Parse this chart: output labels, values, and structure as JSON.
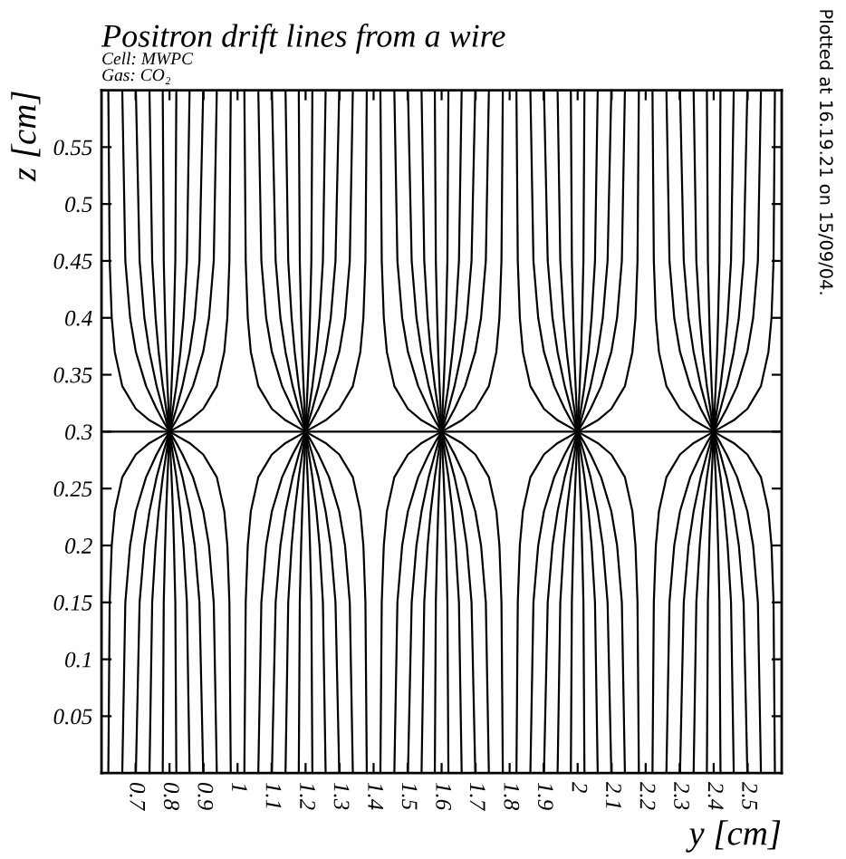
{
  "chart_data": {
    "type": "line",
    "title": "Positron drift lines from a wire",
    "xlabel": "y [cm]",
    "ylabel": "z [cm]",
    "annotations": [
      "Cell: MWPC",
      "Gas: CO₂",
      "Plotted at 16.19.21 on 15/09/04."
    ],
    "xlim": [
      0.6,
      2.6
    ],
    "ylim": [
      0,
      0.6
    ],
    "xticks": [
      0.7,
      0.8,
      0.9,
      1,
      1.1,
      1.2,
      1.3,
      1.4,
      1.5,
      1.6,
      1.7,
      1.8,
      1.9,
      2,
      2.1,
      2.2,
      2.3,
      2.4,
      2.5
    ],
    "yticks": [
      0.05,
      0.1,
      0.15,
      0.2,
      0.25,
      0.3,
      0.35,
      0.4,
      0.45,
      0.5,
      0.55
    ],
    "grid": false,
    "marker": "none",
    "line_style": "solid",
    "series": [
      {
        "color": "#000000",
        "x": [
          0.6,
          2.6
        ],
        "values": [
          0.3,
          0.3
        ]
      },
      {
        "color": "#000000",
        "x": [
          0.78,
          0.783,
          0.787,
          0.79,
          0.794,
          0.797,
          0.798,
          0.8,
          0.798,
          0.797,
          0.794,
          0.79,
          0.787,
          0.783,
          0.78
        ],
        "values": [
          0,
          0.15,
          0.2,
          0.23,
          0.26,
          0.28,
          0.29,
          0.3,
          0.31,
          0.32,
          0.34,
          0.37,
          0.4,
          0.45,
          0.6
        ]
      },
      {
        "color": "#000000",
        "x": [
          0.82,
          0.817,
          0.813,
          0.81,
          0.806,
          0.803,
          0.802,
          0.8,
          0.802,
          0.803,
          0.806,
          0.81,
          0.813,
          0.817,
          0.82
        ],
        "values": [
          0,
          0.15,
          0.2,
          0.23,
          0.26,
          0.28,
          0.29,
          0.3,
          0.31,
          0.32,
          0.34,
          0.37,
          0.4,
          0.45,
          0.6
        ]
      },
      {
        "color": "#000000",
        "x": [
          0.741,
          0.749,
          0.759,
          0.768,
          0.78,
          0.79,
          0.795,
          0.8,
          0.795,
          0.79,
          0.78,
          0.768,
          0.759,
          0.749,
          0.741
        ],
        "values": [
          0,
          0.15,
          0.2,
          0.23,
          0.26,
          0.28,
          0.29,
          0.3,
          0.31,
          0.32,
          0.34,
          0.37,
          0.4,
          0.45,
          0.6
        ]
      },
      {
        "color": "#000000",
        "x": [
          0.859,
          0.851,
          0.841,
          0.832,
          0.82,
          0.81,
          0.805,
          0.8,
          0.805,
          0.81,
          0.82,
          0.832,
          0.841,
          0.851,
          0.859
        ],
        "values": [
          0,
          0.15,
          0.2,
          0.23,
          0.26,
          0.28,
          0.29,
          0.3,
          0.31,
          0.32,
          0.34,
          0.37,
          0.4,
          0.45,
          0.6
        ]
      },
      {
        "color": "#000000",
        "x": [
          0.701,
          0.712,
          0.726,
          0.741,
          0.762,
          0.78,
          0.79,
          0.8,
          0.79,
          0.78,
          0.762,
          0.741,
          0.726,
          0.712,
          0.701
        ],
        "values": [
          0,
          0.15,
          0.2,
          0.23,
          0.26,
          0.28,
          0.29,
          0.3,
          0.31,
          0.32,
          0.34,
          0.37,
          0.4,
          0.45,
          0.6
        ]
      },
      {
        "color": "#000000",
        "x": [
          0.899,
          0.888,
          0.874,
          0.859,
          0.838,
          0.82,
          0.81,
          0.8,
          0.81,
          0.82,
          0.838,
          0.859,
          0.874,
          0.888,
          0.899
        ],
        "values": [
          0,
          0.15,
          0.2,
          0.23,
          0.26,
          0.28,
          0.29,
          0.3,
          0.31,
          0.32,
          0.34,
          0.37,
          0.4,
          0.45,
          0.6
        ]
      },
      {
        "color": "#000000",
        "x": [
          0.661,
          0.67,
          0.684,
          0.701,
          0.731,
          0.762,
          0.78,
          0.8,
          0.78,
          0.762,
          0.731,
          0.701,
          0.684,
          0.67,
          0.661
        ],
        "values": [
          0,
          0.15,
          0.2,
          0.23,
          0.26,
          0.28,
          0.29,
          0.3,
          0.31,
          0.32,
          0.34,
          0.37,
          0.4,
          0.45,
          0.6
        ]
      },
      {
        "color": "#000000",
        "x": [
          0.939,
          0.93,
          0.916,
          0.899,
          0.869,
          0.838,
          0.82,
          0.8,
          0.82,
          0.838,
          0.869,
          0.899,
          0.916,
          0.93,
          0.939
        ],
        "values": [
          0,
          0.15,
          0.2,
          0.23,
          0.26,
          0.28,
          0.29,
          0.3,
          0.31,
          0.32,
          0.34,
          0.37,
          0.4,
          0.45,
          0.6
        ]
      },
      {
        "color": "#000000",
        "x": [
          0.62,
          0.624,
          0.63,
          0.639,
          0.661,
          0.701,
          0.741,
          0.8,
          0.741,
          0.701,
          0.661,
          0.639,
          0.63,
          0.624,
          0.62
        ],
        "values": [
          0,
          0.15,
          0.2,
          0.23,
          0.26,
          0.28,
          0.29,
          0.3,
          0.31,
          0.32,
          0.34,
          0.37,
          0.4,
          0.45,
          0.6
        ]
      },
      {
        "color": "#000000",
        "x": [
          0.98,
          0.976,
          0.97,
          0.961,
          0.939,
          0.899,
          0.859,
          0.8,
          0.859,
          0.899,
          0.939,
          0.961,
          0.97,
          0.976,
          0.98
        ],
        "values": [
          0,
          0.15,
          0.2,
          0.23,
          0.26,
          0.28,
          0.29,
          0.3,
          0.31,
          0.32,
          0.34,
          0.37,
          0.4,
          0.45,
          0.6
        ]
      },
      {
        "color": "#000000",
        "x": [
          1.18,
          1.183,
          1.187,
          1.19,
          1.194,
          1.197,
          1.198,
          1.2,
          1.198,
          1.197,
          1.194,
          1.19,
          1.187,
          1.183,
          1.18
        ],
        "values": [
          0,
          0.15,
          0.2,
          0.23,
          0.26,
          0.28,
          0.29,
          0.3,
          0.31,
          0.32,
          0.34,
          0.37,
          0.4,
          0.45,
          0.6
        ]
      },
      {
        "color": "#000000",
        "x": [
          1.22,
          1.217,
          1.213,
          1.21,
          1.206,
          1.203,
          1.202,
          1.2,
          1.202,
          1.203,
          1.206,
          1.21,
          1.213,
          1.217,
          1.22
        ],
        "values": [
          0,
          0.15,
          0.2,
          0.23,
          0.26,
          0.28,
          0.29,
          0.3,
          0.31,
          0.32,
          0.34,
          0.37,
          0.4,
          0.45,
          0.6
        ]
      },
      {
        "color": "#000000",
        "x": [
          1.141,
          1.149,
          1.159,
          1.168,
          1.18,
          1.19,
          1.195,
          1.2,
          1.195,
          1.19,
          1.18,
          1.168,
          1.159,
          1.149,
          1.141
        ],
        "values": [
          0,
          0.15,
          0.2,
          0.23,
          0.26,
          0.28,
          0.29,
          0.3,
          0.31,
          0.32,
          0.34,
          0.37,
          0.4,
          0.45,
          0.6
        ]
      },
      {
        "color": "#000000",
        "x": [
          1.259,
          1.251,
          1.241,
          1.232,
          1.22,
          1.21,
          1.205,
          1.2,
          1.205,
          1.21,
          1.22,
          1.232,
          1.241,
          1.251,
          1.259
        ],
        "values": [
          0,
          0.15,
          0.2,
          0.23,
          0.26,
          0.28,
          0.29,
          0.3,
          0.31,
          0.32,
          0.34,
          0.37,
          0.4,
          0.45,
          0.6
        ]
      },
      {
        "color": "#000000",
        "x": [
          1.101,
          1.112,
          1.126,
          1.141,
          1.162,
          1.18,
          1.19,
          1.2,
          1.19,
          1.18,
          1.162,
          1.141,
          1.126,
          1.112,
          1.101
        ],
        "values": [
          0,
          0.15,
          0.2,
          0.23,
          0.26,
          0.28,
          0.29,
          0.3,
          0.31,
          0.32,
          0.34,
          0.37,
          0.4,
          0.45,
          0.6
        ]
      },
      {
        "color": "#000000",
        "x": [
          1.299,
          1.288,
          1.274,
          1.259,
          1.238,
          1.22,
          1.21,
          1.2,
          1.21,
          1.22,
          1.238,
          1.259,
          1.274,
          1.288,
          1.299
        ],
        "values": [
          0,
          0.15,
          0.2,
          0.23,
          0.26,
          0.28,
          0.29,
          0.3,
          0.31,
          0.32,
          0.34,
          0.37,
          0.4,
          0.45,
          0.6
        ]
      },
      {
        "color": "#000000",
        "x": [
          1.061,
          1.07,
          1.084,
          1.101,
          1.131,
          1.162,
          1.18,
          1.2,
          1.18,
          1.162,
          1.131,
          1.101,
          1.084,
          1.07,
          1.061
        ],
        "values": [
          0,
          0.15,
          0.2,
          0.23,
          0.26,
          0.28,
          0.29,
          0.3,
          0.31,
          0.32,
          0.34,
          0.37,
          0.4,
          0.45,
          0.6
        ]
      },
      {
        "color": "#000000",
        "x": [
          1.339,
          1.33,
          1.316,
          1.299,
          1.269,
          1.238,
          1.22,
          1.2,
          1.22,
          1.238,
          1.269,
          1.299,
          1.316,
          1.33,
          1.339
        ],
        "values": [
          0,
          0.15,
          0.2,
          0.23,
          0.26,
          0.28,
          0.29,
          0.3,
          0.31,
          0.32,
          0.34,
          0.37,
          0.4,
          0.45,
          0.6
        ]
      },
      {
        "color": "#000000",
        "x": [
          1.02,
          1.024,
          1.03,
          1.039,
          1.061,
          1.101,
          1.141,
          1.2,
          1.141,
          1.101,
          1.061,
          1.039,
          1.03,
          1.024,
          1.02
        ],
        "values": [
          0,
          0.15,
          0.2,
          0.23,
          0.26,
          0.28,
          0.29,
          0.3,
          0.31,
          0.32,
          0.34,
          0.37,
          0.4,
          0.45,
          0.6
        ]
      },
      {
        "color": "#000000",
        "x": [
          1.38,
          1.376,
          1.37,
          1.361,
          1.339,
          1.299,
          1.259,
          1.2,
          1.259,
          1.299,
          1.339,
          1.361,
          1.37,
          1.376,
          1.38
        ],
        "values": [
          0,
          0.15,
          0.2,
          0.23,
          0.26,
          0.28,
          0.29,
          0.3,
          0.31,
          0.32,
          0.34,
          0.37,
          0.4,
          0.45,
          0.6
        ]
      },
      {
        "color": "#000000",
        "x": [
          1.58,
          1.583,
          1.587,
          1.59,
          1.594,
          1.597,
          1.598,
          1.6,
          1.598,
          1.597,
          1.594,
          1.59,
          1.587,
          1.583,
          1.58
        ],
        "values": [
          0,
          0.15,
          0.2,
          0.23,
          0.26,
          0.28,
          0.29,
          0.3,
          0.31,
          0.32,
          0.34,
          0.37,
          0.4,
          0.45,
          0.6
        ]
      },
      {
        "color": "#000000",
        "x": [
          1.62,
          1.617,
          1.613,
          1.61,
          1.606,
          1.603,
          1.602,
          1.6,
          1.602,
          1.603,
          1.606,
          1.61,
          1.613,
          1.617,
          1.62
        ],
        "values": [
          0,
          0.15,
          0.2,
          0.23,
          0.26,
          0.28,
          0.29,
          0.3,
          0.31,
          0.32,
          0.34,
          0.37,
          0.4,
          0.45,
          0.6
        ]
      },
      {
        "color": "#000000",
        "x": [
          1.541,
          1.549,
          1.559,
          1.568,
          1.58,
          1.59,
          1.595,
          1.6,
          1.595,
          1.59,
          1.58,
          1.568,
          1.559,
          1.549,
          1.541
        ],
        "values": [
          0,
          0.15,
          0.2,
          0.23,
          0.26,
          0.28,
          0.29,
          0.3,
          0.31,
          0.32,
          0.34,
          0.37,
          0.4,
          0.45,
          0.6
        ]
      },
      {
        "color": "#000000",
        "x": [
          1.659,
          1.651,
          1.641,
          1.632,
          1.62,
          1.61,
          1.605,
          1.6,
          1.605,
          1.61,
          1.62,
          1.632,
          1.641,
          1.651,
          1.659
        ],
        "values": [
          0,
          0.15,
          0.2,
          0.23,
          0.26,
          0.28,
          0.29,
          0.3,
          0.31,
          0.32,
          0.34,
          0.37,
          0.4,
          0.45,
          0.6
        ]
      },
      {
        "color": "#000000",
        "x": [
          1.501,
          1.512,
          1.526,
          1.541,
          1.562,
          1.58,
          1.59,
          1.6,
          1.59,
          1.58,
          1.562,
          1.541,
          1.526,
          1.512,
          1.501
        ],
        "values": [
          0,
          0.15,
          0.2,
          0.23,
          0.26,
          0.28,
          0.29,
          0.3,
          0.31,
          0.32,
          0.34,
          0.37,
          0.4,
          0.45,
          0.6
        ]
      },
      {
        "color": "#000000",
        "x": [
          1.699,
          1.688,
          1.674,
          1.659,
          1.638,
          1.62,
          1.61,
          1.6,
          1.61,
          1.62,
          1.638,
          1.659,
          1.674,
          1.688,
          1.699
        ],
        "values": [
          0,
          0.15,
          0.2,
          0.23,
          0.26,
          0.28,
          0.29,
          0.3,
          0.31,
          0.32,
          0.34,
          0.37,
          0.4,
          0.45,
          0.6
        ]
      },
      {
        "color": "#000000",
        "x": [
          1.461,
          1.47,
          1.484,
          1.501,
          1.531,
          1.562,
          1.58,
          1.6,
          1.58,
          1.562,
          1.531,
          1.501,
          1.484,
          1.47,
          1.461
        ],
        "values": [
          0,
          0.15,
          0.2,
          0.23,
          0.26,
          0.28,
          0.29,
          0.3,
          0.31,
          0.32,
          0.34,
          0.37,
          0.4,
          0.45,
          0.6
        ]
      },
      {
        "color": "#000000",
        "x": [
          1.739,
          1.73,
          1.716,
          1.699,
          1.669,
          1.638,
          1.62,
          1.6,
          1.62,
          1.638,
          1.669,
          1.699,
          1.716,
          1.73,
          1.739
        ],
        "values": [
          0,
          0.15,
          0.2,
          0.23,
          0.26,
          0.28,
          0.29,
          0.3,
          0.31,
          0.32,
          0.34,
          0.37,
          0.4,
          0.45,
          0.6
        ]
      },
      {
        "color": "#000000",
        "x": [
          1.42,
          1.424,
          1.43,
          1.439,
          1.461,
          1.501,
          1.541,
          1.6,
          1.541,
          1.501,
          1.461,
          1.439,
          1.43,
          1.424,
          1.42
        ],
        "values": [
          0,
          0.15,
          0.2,
          0.23,
          0.26,
          0.28,
          0.29,
          0.3,
          0.31,
          0.32,
          0.34,
          0.37,
          0.4,
          0.45,
          0.6
        ]
      },
      {
        "color": "#000000",
        "x": [
          1.78,
          1.776,
          1.77,
          1.761,
          1.739,
          1.699,
          1.659,
          1.6,
          1.659,
          1.699,
          1.739,
          1.761,
          1.77,
          1.776,
          1.78
        ],
        "values": [
          0,
          0.15,
          0.2,
          0.23,
          0.26,
          0.28,
          0.29,
          0.3,
          0.31,
          0.32,
          0.34,
          0.37,
          0.4,
          0.45,
          0.6
        ]
      },
      {
        "color": "#000000",
        "x": [
          1.98,
          1.983,
          1.987,
          1.99,
          1.994,
          1.997,
          1.998,
          2.0,
          1.998,
          1.997,
          1.994,
          1.99,
          1.987,
          1.983,
          1.98
        ],
        "values": [
          0,
          0.15,
          0.2,
          0.23,
          0.26,
          0.28,
          0.29,
          0.3,
          0.31,
          0.32,
          0.34,
          0.37,
          0.4,
          0.45,
          0.6
        ]
      },
      {
        "color": "#000000",
        "x": [
          2.02,
          2.017,
          2.013,
          2.01,
          2.006,
          2.003,
          2.002,
          2.0,
          2.002,
          2.003,
          2.006,
          2.01,
          2.013,
          2.017,
          2.02
        ],
        "values": [
          0,
          0.15,
          0.2,
          0.23,
          0.26,
          0.28,
          0.29,
          0.3,
          0.31,
          0.32,
          0.34,
          0.37,
          0.4,
          0.45,
          0.6
        ]
      },
      {
        "color": "#000000",
        "x": [
          1.941,
          1.949,
          1.959,
          1.968,
          1.98,
          1.99,
          1.995,
          2.0,
          1.995,
          1.99,
          1.98,
          1.968,
          1.959,
          1.949,
          1.941
        ],
        "values": [
          0,
          0.15,
          0.2,
          0.23,
          0.26,
          0.28,
          0.29,
          0.3,
          0.31,
          0.32,
          0.34,
          0.37,
          0.4,
          0.45,
          0.6
        ]
      },
      {
        "color": "#000000",
        "x": [
          2.059,
          2.051,
          2.041,
          2.032,
          2.02,
          2.01,
          2.005,
          2.0,
          2.005,
          2.01,
          2.02,
          2.032,
          2.041,
          2.051,
          2.059
        ],
        "values": [
          0,
          0.15,
          0.2,
          0.23,
          0.26,
          0.28,
          0.29,
          0.3,
          0.31,
          0.32,
          0.34,
          0.37,
          0.4,
          0.45,
          0.6
        ]
      },
      {
        "color": "#000000",
        "x": [
          1.901,
          1.912,
          1.926,
          1.941,
          1.962,
          1.98,
          1.99,
          2.0,
          1.99,
          1.98,
          1.962,
          1.941,
          1.926,
          1.912,
          1.901
        ],
        "values": [
          0,
          0.15,
          0.2,
          0.23,
          0.26,
          0.28,
          0.29,
          0.3,
          0.31,
          0.32,
          0.34,
          0.37,
          0.4,
          0.45,
          0.6
        ]
      },
      {
        "color": "#000000",
        "x": [
          2.099,
          2.088,
          2.074,
          2.059,
          2.038,
          2.02,
          2.01,
          2.0,
          2.01,
          2.02,
          2.038,
          2.059,
          2.074,
          2.088,
          2.099
        ],
        "values": [
          0,
          0.15,
          0.2,
          0.23,
          0.26,
          0.28,
          0.29,
          0.3,
          0.31,
          0.32,
          0.34,
          0.37,
          0.4,
          0.45,
          0.6
        ]
      },
      {
        "color": "#000000",
        "x": [
          1.861,
          1.87,
          1.884,
          1.901,
          1.931,
          1.962,
          1.98,
          2.0,
          1.98,
          1.962,
          1.931,
          1.901,
          1.884,
          1.87,
          1.861
        ],
        "values": [
          0,
          0.15,
          0.2,
          0.23,
          0.26,
          0.28,
          0.29,
          0.3,
          0.31,
          0.32,
          0.34,
          0.37,
          0.4,
          0.45,
          0.6
        ]
      },
      {
        "color": "#000000",
        "x": [
          2.139,
          2.13,
          2.116,
          2.099,
          2.069,
          2.038,
          2.02,
          2.0,
          2.02,
          2.038,
          2.069,
          2.099,
          2.116,
          2.13,
          2.139
        ],
        "values": [
          0,
          0.15,
          0.2,
          0.23,
          0.26,
          0.28,
          0.29,
          0.3,
          0.31,
          0.32,
          0.34,
          0.37,
          0.4,
          0.45,
          0.6
        ]
      },
      {
        "color": "#000000",
        "x": [
          1.82,
          1.824,
          1.83,
          1.839,
          1.861,
          1.901,
          1.941,
          2.0,
          1.941,
          1.901,
          1.861,
          1.839,
          1.83,
          1.824,
          1.82
        ],
        "values": [
          0,
          0.15,
          0.2,
          0.23,
          0.26,
          0.28,
          0.29,
          0.3,
          0.31,
          0.32,
          0.34,
          0.37,
          0.4,
          0.45,
          0.6
        ]
      },
      {
        "color": "#000000",
        "x": [
          2.18,
          2.176,
          2.17,
          2.161,
          2.139,
          2.099,
          2.059,
          2.0,
          2.059,
          2.099,
          2.139,
          2.161,
          2.17,
          2.176,
          2.18
        ],
        "values": [
          0,
          0.15,
          0.2,
          0.23,
          0.26,
          0.28,
          0.29,
          0.3,
          0.31,
          0.32,
          0.34,
          0.37,
          0.4,
          0.45,
          0.6
        ]
      },
      {
        "color": "#000000",
        "x": [
          2.38,
          2.383,
          2.387,
          2.39,
          2.394,
          2.397,
          2.398,
          2.4,
          2.398,
          2.397,
          2.394,
          2.39,
          2.387,
          2.383,
          2.38
        ],
        "values": [
          0,
          0.15,
          0.2,
          0.23,
          0.26,
          0.28,
          0.29,
          0.3,
          0.31,
          0.32,
          0.34,
          0.37,
          0.4,
          0.45,
          0.6
        ]
      },
      {
        "color": "#000000",
        "x": [
          2.42,
          2.417,
          2.413,
          2.41,
          2.406,
          2.403,
          2.402,
          2.4,
          2.402,
          2.403,
          2.406,
          2.41,
          2.413,
          2.417,
          2.42
        ],
        "values": [
          0,
          0.15,
          0.2,
          0.23,
          0.26,
          0.28,
          0.29,
          0.3,
          0.31,
          0.32,
          0.34,
          0.37,
          0.4,
          0.45,
          0.6
        ]
      },
      {
        "color": "#000000",
        "x": [
          2.341,
          2.349,
          2.359,
          2.368,
          2.38,
          2.39,
          2.395,
          2.4,
          2.395,
          2.39,
          2.38,
          2.368,
          2.359,
          2.349,
          2.341
        ],
        "values": [
          0,
          0.15,
          0.2,
          0.23,
          0.26,
          0.28,
          0.29,
          0.3,
          0.31,
          0.32,
          0.34,
          0.37,
          0.4,
          0.45,
          0.6
        ]
      },
      {
        "color": "#000000",
        "x": [
          2.459,
          2.451,
          2.441,
          2.432,
          2.42,
          2.41,
          2.405,
          2.4,
          2.405,
          2.41,
          2.42,
          2.432,
          2.441,
          2.451,
          2.459
        ],
        "values": [
          0,
          0.15,
          0.2,
          0.23,
          0.26,
          0.28,
          0.29,
          0.3,
          0.31,
          0.32,
          0.34,
          0.37,
          0.4,
          0.45,
          0.6
        ]
      },
      {
        "color": "#000000",
        "x": [
          2.301,
          2.312,
          2.326,
          2.341,
          2.362,
          2.38,
          2.39,
          2.4,
          2.39,
          2.38,
          2.362,
          2.341,
          2.326,
          2.312,
          2.301
        ],
        "values": [
          0,
          0.15,
          0.2,
          0.23,
          0.26,
          0.28,
          0.29,
          0.3,
          0.31,
          0.32,
          0.34,
          0.37,
          0.4,
          0.45,
          0.6
        ]
      },
      {
        "color": "#000000",
        "x": [
          2.499,
          2.488,
          2.474,
          2.459,
          2.438,
          2.42,
          2.41,
          2.4,
          2.41,
          2.42,
          2.438,
          2.459,
          2.474,
          2.488,
          2.499
        ],
        "values": [
          0,
          0.15,
          0.2,
          0.23,
          0.26,
          0.28,
          0.29,
          0.3,
          0.31,
          0.32,
          0.34,
          0.37,
          0.4,
          0.45,
          0.6
        ]
      },
      {
        "color": "#000000",
        "x": [
          2.261,
          2.27,
          2.284,
          2.301,
          2.331,
          2.362,
          2.38,
          2.4,
          2.38,
          2.362,
          2.331,
          2.301,
          2.284,
          2.27,
          2.261
        ],
        "values": [
          0,
          0.15,
          0.2,
          0.23,
          0.26,
          0.28,
          0.29,
          0.3,
          0.31,
          0.32,
          0.34,
          0.37,
          0.4,
          0.45,
          0.6
        ]
      },
      {
        "color": "#000000",
        "x": [
          2.539,
          2.53,
          2.516,
          2.499,
          2.469,
          2.438,
          2.42,
          2.4,
          2.42,
          2.438,
          2.469,
          2.499,
          2.516,
          2.53,
          2.539
        ],
        "values": [
          0,
          0.15,
          0.2,
          0.23,
          0.26,
          0.28,
          0.29,
          0.3,
          0.31,
          0.32,
          0.34,
          0.37,
          0.4,
          0.45,
          0.6
        ]
      },
      {
        "color": "#000000",
        "x": [
          2.22,
          2.224,
          2.23,
          2.239,
          2.261,
          2.301,
          2.341,
          2.4,
          2.341,
          2.301,
          2.261,
          2.239,
          2.23,
          2.224,
          2.22
        ],
        "values": [
          0,
          0.15,
          0.2,
          0.23,
          0.26,
          0.28,
          0.29,
          0.3,
          0.31,
          0.32,
          0.34,
          0.37,
          0.4,
          0.45,
          0.6
        ]
      },
      {
        "color": "#000000",
        "x": [
          2.58,
          2.576,
          2.57,
          2.561,
          2.539,
          2.499,
          2.459,
          2.4,
          2.459,
          2.499,
          2.539,
          2.561,
          2.57,
          2.576,
          2.58
        ],
        "values": [
          0,
          0.15,
          0.2,
          0.23,
          0.26,
          0.28,
          0.29,
          0.3,
          0.31,
          0.32,
          0.34,
          0.37,
          0.4,
          0.45,
          0.6
        ]
      }
    ]
  }
}
